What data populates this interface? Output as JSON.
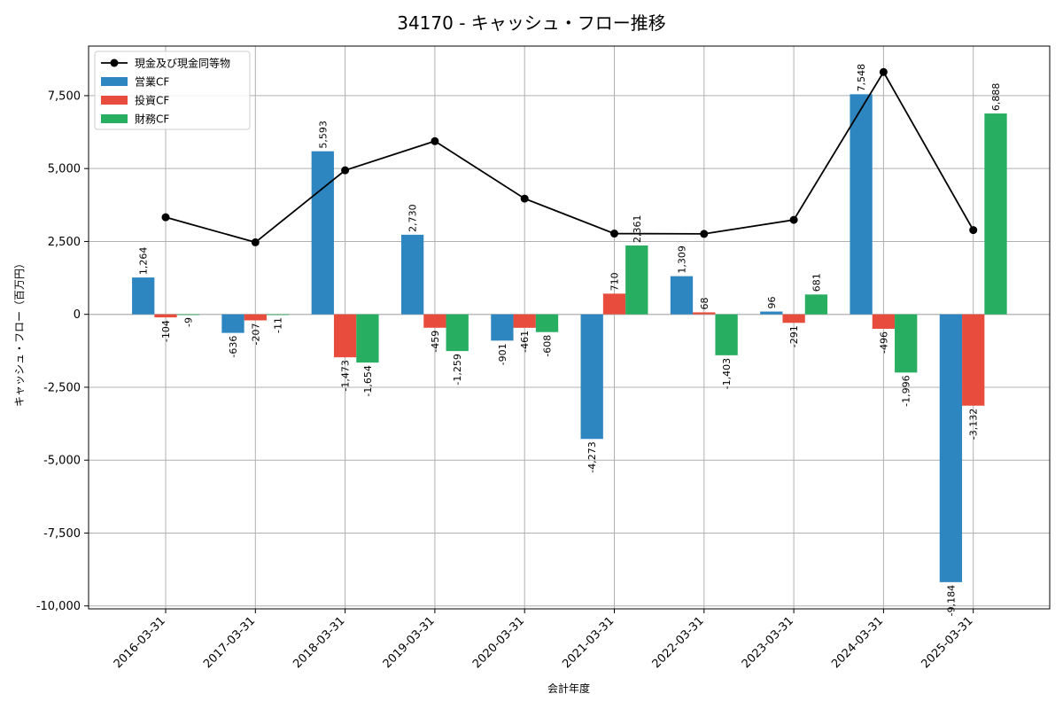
{
  "chart_data": {
    "type": "bar",
    "title": "34170 - キャッシュ・フロー推移",
    "xlabel": "会計年度",
    "ylabel": "キャッシュ・フロー（百万円）",
    "ylim": [
      -10100,
      9200
    ],
    "yticks": [
      -10000,
      -7500,
      -5000,
      -2500,
      0,
      2500,
      5000,
      7500
    ],
    "ytick_labels": [
      "-10,000",
      "-7,500",
      "-5,000",
      "-2,500",
      "0",
      "2,500",
      "5,000",
      "7,500"
    ],
    "grid": true,
    "legend_position": "top-left",
    "categories": [
      "2016-03-31",
      "2017-03-31",
      "2018-03-31",
      "2019-03-31",
      "2020-03-31",
      "2021-03-31",
      "2022-03-31",
      "2023-03-31",
      "2024-03-31",
      "2025-03-31"
    ],
    "series": [
      {
        "name": "営業CF",
        "color": "#2e86c1",
        "values": [
          1264,
          -636,
          5593,
          2730,
          -901,
          -4273,
          1309,
          96,
          7548,
          -9184
        ],
        "labels": [
          "1,264",
          "-636",
          "5,593",
          "2,730",
          "-901",
          "-4,273",
          "1,309",
          "96",
          "7,548",
          "-9,184"
        ]
      },
      {
        "name": "投資CF",
        "color": "#e74c3c",
        "values": [
          -104,
          -207,
          -1473,
          -459,
          -461,
          710,
          68,
          -291,
          -496,
          -3132
        ],
        "labels": [
          "-104",
          "-207",
          "-1,473",
          "-459",
          "-461",
          "710",
          "68",
          "-291",
          "-496",
          "-3,132"
        ]
      },
      {
        "name": "財務CF",
        "color": "#27ae60",
        "values": [
          -9,
          -11,
          -1654,
          -1259,
          -608,
          2361,
          -1403,
          681,
          -1996,
          6888
        ],
        "labels": [
          "-9",
          "-11",
          "-1,654",
          "-1,259",
          "-608",
          "2,361",
          "-1,403",
          "681",
          "-1,996",
          "6,888"
        ]
      }
    ],
    "line": {
      "name": "現金及び現金同等物",
      "color": "#000000",
      "values": [
        3330,
        2470,
        4940,
        5940,
        3970,
        2770,
        2760,
        3240,
        8310,
        2890
      ]
    }
  }
}
